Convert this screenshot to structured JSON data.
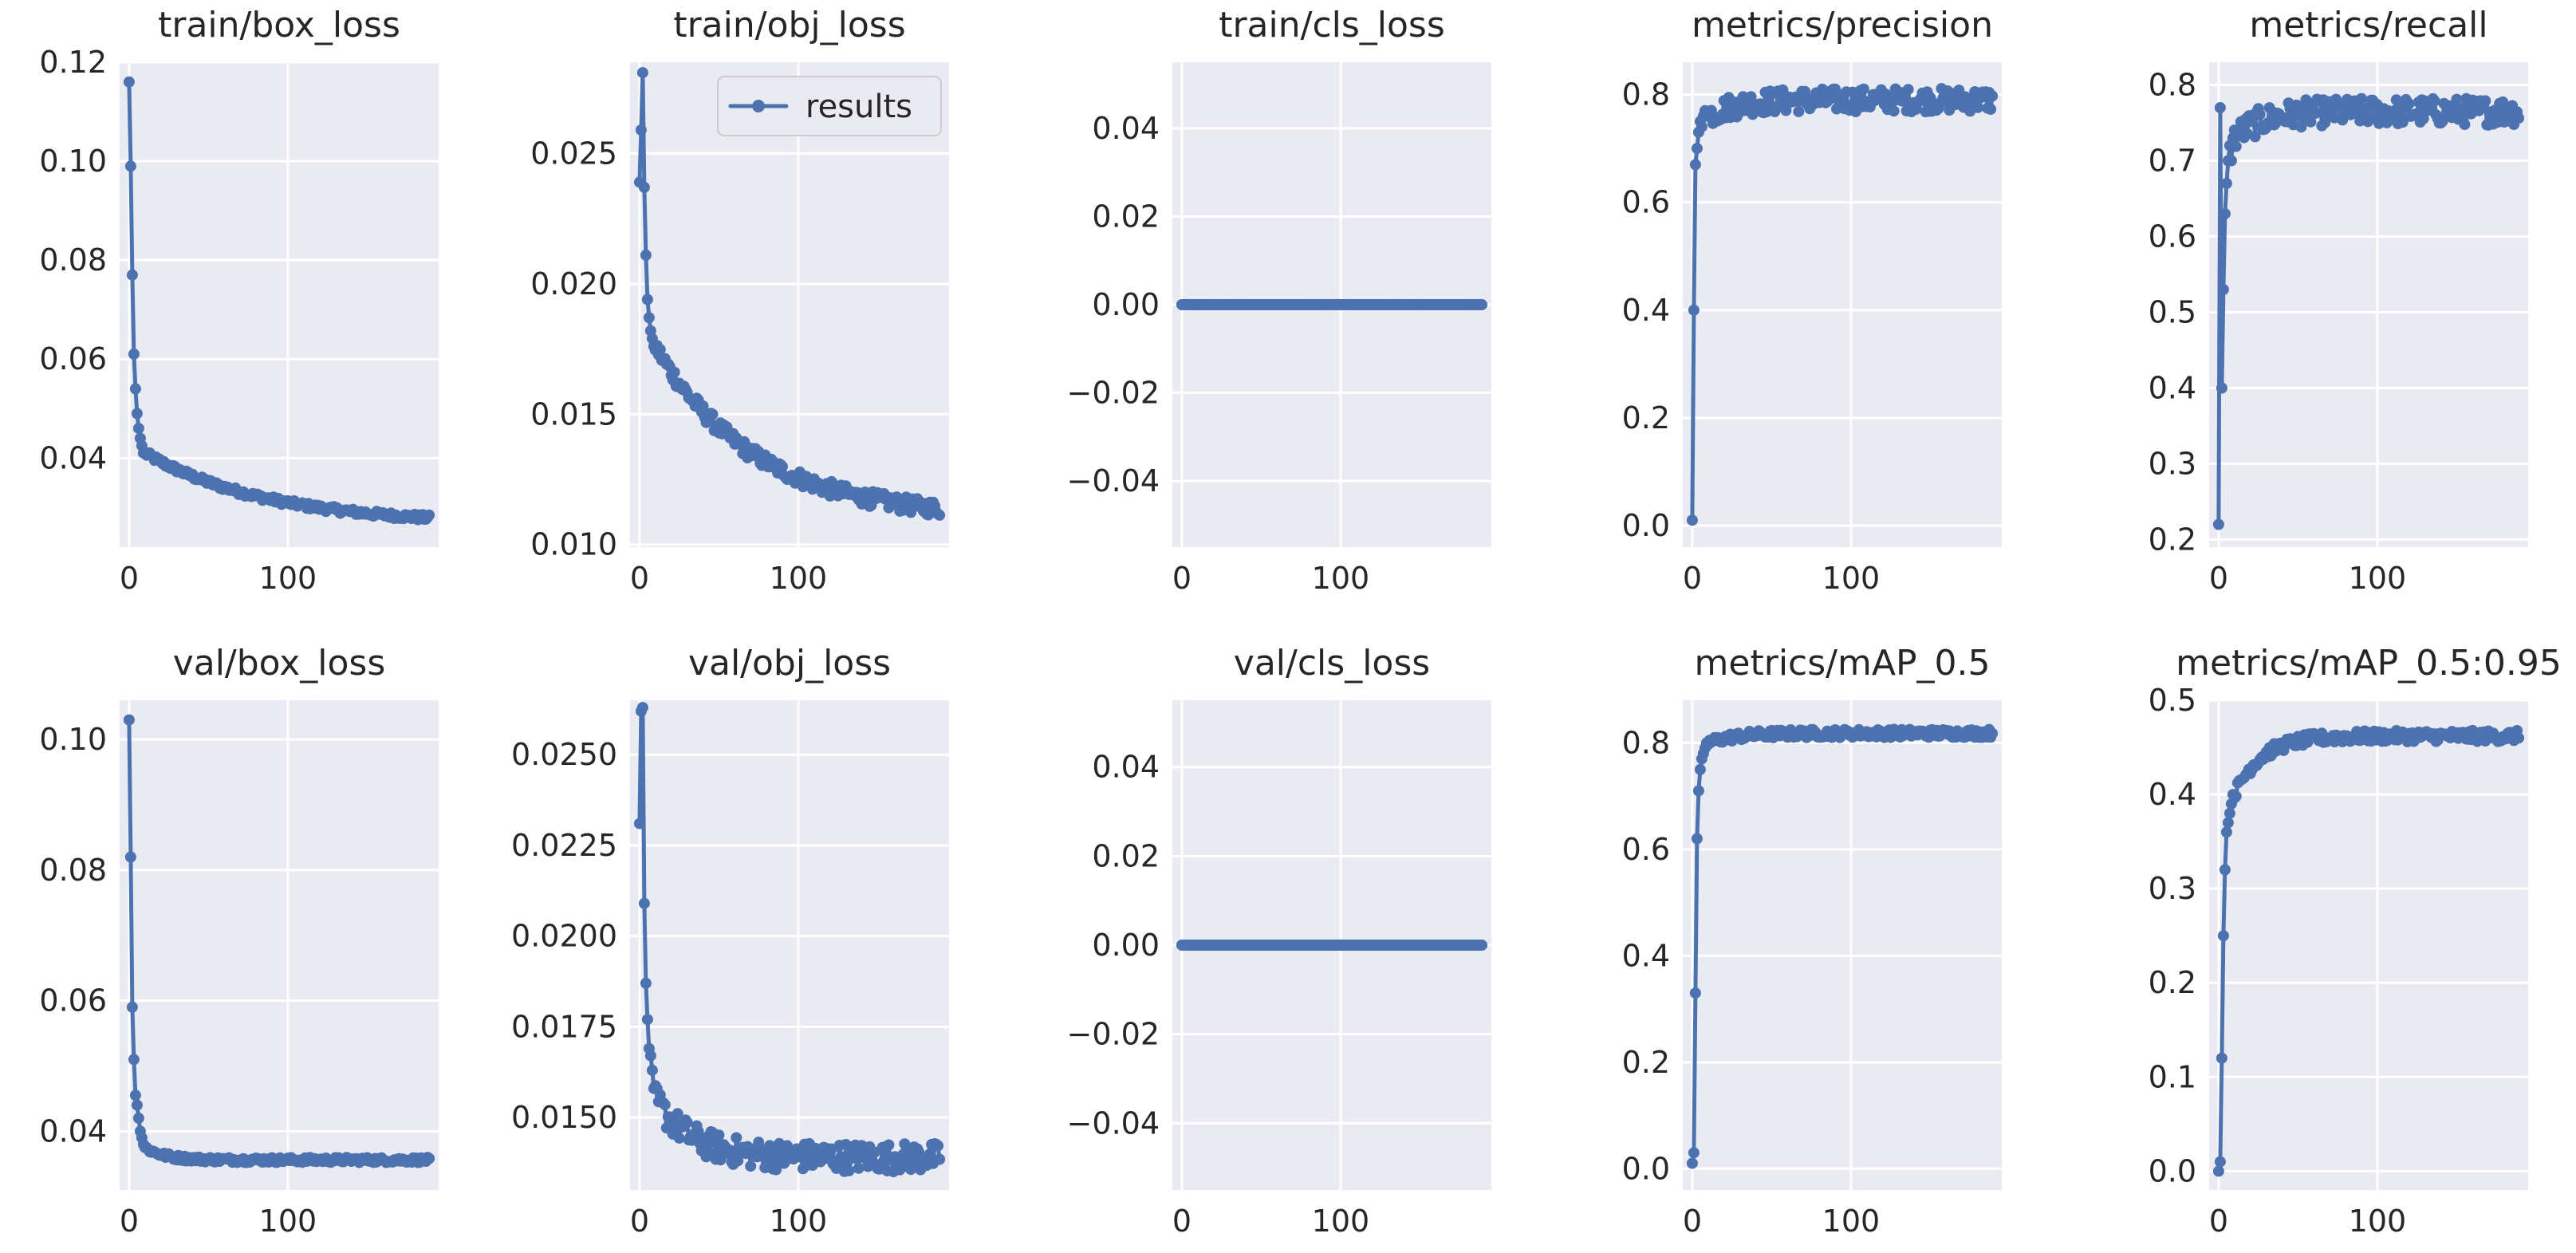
{
  "figure": {
    "legend_label": "results",
    "series_color": "#4c72b0",
    "plot_background": "#eaeaf2"
  },
  "chart_data": [
    {
      "type": "line",
      "title": "train/box_loss",
      "xlim": [
        -6,
        195
      ],
      "ylim": [
        0.022,
        0.12
      ],
      "xticks": [
        {
          "value": 0,
          "label": "0"
        },
        {
          "value": 100,
          "label": "100"
        }
      ],
      "yticks": [
        {
          "value": 0.04,
          "label": "0.04"
        },
        {
          "value": 0.06,
          "label": "0.06"
        },
        {
          "value": 0.08,
          "label": "0.08"
        },
        {
          "value": 0.1,
          "label": "0.10"
        },
        {
          "value": 0.12,
          "label": "0.12"
        }
      ],
      "curve": {
        "kind": "decay",
        "start": [
          0.116,
          0.099,
          0.077,
          0.061,
          0.054,
          0.049,
          0.046,
          0.044,
          0.0425,
          0.041
        ],
        "tail_from": 0.041,
        "tail_to": 0.0265,
        "rate": 0.013,
        "noise": 0.0006
      },
      "legend": false
    },
    {
      "type": "line",
      "title": "train/obj_loss",
      "xlim": [
        -6,
        195
      ],
      "ylim": [
        0.0099,
        0.0285
      ],
      "xticks": [
        {
          "value": 0,
          "label": "0"
        },
        {
          "value": 100,
          "label": "100"
        }
      ],
      "yticks": [
        {
          "value": 0.01,
          "label": "0.010"
        },
        {
          "value": 0.015,
          "label": "0.015"
        },
        {
          "value": 0.02,
          "label": "0.020"
        },
        {
          "value": 0.025,
          "label": "0.025"
        }
      ],
      "curve": {
        "kind": "decay",
        "start": [
          0.0239,
          0.0259,
          0.0281,
          0.0237,
          0.0211,
          0.0194,
          0.0187,
          0.0182,
          0.0179,
          0.0176
        ],
        "tail_from": 0.0176,
        "tail_to": 0.011,
        "rate": 0.016,
        "noise": 0.0003
      },
      "legend": true
    },
    {
      "type": "line",
      "title": "train/cls_loss",
      "xlim": [
        -6,
        195
      ],
      "ylim": [
        -0.055,
        0.055
      ],
      "xticks": [
        {
          "value": 0,
          "label": "0"
        },
        {
          "value": 100,
          "label": "100"
        }
      ],
      "yticks": [
        {
          "value": -0.04,
          "label": "−0.04"
        },
        {
          "value": -0.02,
          "label": "−0.02"
        },
        {
          "value": 0.0,
          "label": "0.00"
        },
        {
          "value": 0.02,
          "label": "0.02"
        },
        {
          "value": 0.04,
          "label": "0.04"
        }
      ],
      "curve": {
        "kind": "flat",
        "value": 0.0
      },
      "legend": false
    },
    {
      "type": "line",
      "title": "metrics/precision",
      "xlim": [
        -6,
        195
      ],
      "ylim": [
        -0.04,
        0.86
      ],
      "xticks": [
        {
          "value": 0,
          "label": "0"
        },
        {
          "value": 100,
          "label": "100"
        }
      ],
      "yticks": [
        {
          "value": 0.0,
          "label": "0.0"
        },
        {
          "value": 0.2,
          "label": "0.2"
        },
        {
          "value": 0.4,
          "label": "0.4"
        },
        {
          "value": 0.6,
          "label": "0.6"
        },
        {
          "value": 0.8,
          "label": "0.8"
        }
      ],
      "curve": {
        "kind": "rise",
        "start": [
          0.01,
          0.4,
          0.67,
          0.7,
          0.73,
          0.75,
          0.74,
          0.76,
          0.77,
          0.76
        ],
        "plateau": 0.79,
        "noise": 0.022
      },
      "legend": false
    },
    {
      "type": "line",
      "title": "metrics/recall",
      "xlim": [
        -6,
        195
      ],
      "ylim": [
        0.19,
        0.83
      ],
      "xticks": [
        {
          "value": 0,
          "label": "0"
        },
        {
          "value": 100,
          "label": "100"
        }
      ],
      "yticks": [
        {
          "value": 0.2,
          "label": "0.2"
        },
        {
          "value": 0.3,
          "label": "0.3"
        },
        {
          "value": 0.4,
          "label": "0.4"
        },
        {
          "value": 0.5,
          "label": "0.5"
        },
        {
          "value": 0.6,
          "label": "0.6"
        },
        {
          "value": 0.7,
          "label": "0.7"
        },
        {
          "value": 0.8,
          "label": "0.8"
        }
      ],
      "curve": {
        "kind": "rise",
        "start": [
          0.22,
          0.77,
          0.4,
          0.53,
          0.63,
          0.67,
          0.7,
          0.72,
          0.7,
          0.73
        ],
        "plateau": 0.765,
        "noise": 0.018
      },
      "legend": false
    },
    {
      "type": "line",
      "title": "val/box_loss",
      "xlim": [
        -6,
        195
      ],
      "ylim": [
        0.031,
        0.106
      ],
      "xticks": [
        {
          "value": 0,
          "label": "0"
        },
        {
          "value": 100,
          "label": "100"
        }
      ],
      "yticks": [
        {
          "value": 0.04,
          "label": "0.04"
        },
        {
          "value": 0.06,
          "label": "0.06"
        },
        {
          "value": 0.08,
          "label": "0.08"
        },
        {
          "value": 0.1,
          "label": "0.10"
        }
      ],
      "curve": {
        "kind": "decay",
        "start": [
          0.103,
          0.082,
          0.059,
          0.051,
          0.0455,
          0.044,
          0.042,
          0.04,
          0.039,
          0.038
        ],
        "tail_from": 0.0375,
        "tail_to": 0.0356,
        "rate": 0.08,
        "noise": 0.0004
      },
      "legend": false
    },
    {
      "type": "line",
      "title": "val/obj_loss",
      "xlim": [
        -6,
        195
      ],
      "ylim": [
        0.013,
        0.0265
      ],
      "xticks": [
        {
          "value": 0,
          "label": "0"
        },
        {
          "value": 100,
          "label": "100"
        }
      ],
      "yticks": [
        {
          "value": 0.015,
          "label": "0.0150"
        },
        {
          "value": 0.0175,
          "label": "0.0175"
        },
        {
          "value": 0.02,
          "label": "0.0200"
        },
        {
          "value": 0.0225,
          "label": "0.0225"
        },
        {
          "value": 0.025,
          "label": "0.0250"
        }
      ],
      "curve": {
        "kind": "decay",
        "start": [
          0.0231,
          0.0262,
          0.0263,
          0.0209,
          0.0187,
          0.0177,
          0.0169,
          0.0167,
          0.0163,
          0.0158
        ],
        "tail_from": 0.0155,
        "tail_to": 0.0139,
        "rate": 0.045,
        "noise": 0.0004
      },
      "legend": false
    },
    {
      "type": "line",
      "title": "val/cls_loss",
      "xlim": [
        -6,
        195
      ],
      "ylim": [
        -0.055,
        0.055
      ],
      "xticks": [
        {
          "value": 0,
          "label": "0"
        },
        {
          "value": 100,
          "label": "100"
        }
      ],
      "yticks": [
        {
          "value": -0.04,
          "label": "−0.04"
        },
        {
          "value": -0.02,
          "label": "−0.02"
        },
        {
          "value": 0.0,
          "label": "0.00"
        },
        {
          "value": 0.02,
          "label": "0.02"
        },
        {
          "value": 0.04,
          "label": "0.04"
        }
      ],
      "curve": {
        "kind": "flat",
        "value": 0.0
      },
      "legend": false
    },
    {
      "type": "line",
      "title": "metrics/mAP_0.5",
      "xlim": [
        -6,
        195
      ],
      "ylim": [
        -0.04,
        0.88
      ],
      "xticks": [
        {
          "value": 0,
          "label": "0"
        },
        {
          "value": 100,
          "label": "100"
        }
      ],
      "yticks": [
        {
          "value": 0.0,
          "label": "0.0"
        },
        {
          "value": 0.2,
          "label": "0.2"
        },
        {
          "value": 0.4,
          "label": "0.4"
        },
        {
          "value": 0.6,
          "label": "0.6"
        },
        {
          "value": 0.8,
          "label": "0.8"
        }
      ],
      "curve": {
        "kind": "rise",
        "start": [
          0.01,
          0.03,
          0.33,
          0.62,
          0.71,
          0.75,
          0.77,
          0.78,
          0.79,
          0.8
        ],
        "plateau": 0.818,
        "noise": 0.008
      },
      "legend": false
    },
    {
      "type": "line",
      "title": "metrics/mAP_0.5:0.95",
      "xlim": [
        -6,
        195
      ],
      "ylim": [
        -0.02,
        0.5
      ],
      "xticks": [
        {
          "value": 0,
          "label": "0"
        },
        {
          "value": 100,
          "label": "100"
        }
      ],
      "yticks": [
        {
          "value": 0.0,
          "label": "0.0"
        },
        {
          "value": 0.1,
          "label": "0.1"
        },
        {
          "value": 0.2,
          "label": "0.2"
        },
        {
          "value": 0.3,
          "label": "0.3"
        },
        {
          "value": 0.4,
          "label": "0.4"
        },
        {
          "value": 0.5,
          "label": "0.5"
        }
      ],
      "curve": {
        "kind": "rise",
        "start": [
          0.0,
          0.01,
          0.12,
          0.25,
          0.32,
          0.36,
          0.37,
          0.38,
          0.39,
          0.4
        ],
        "plateau": 0.462,
        "noise": 0.006
      },
      "legend": false
    }
  ]
}
